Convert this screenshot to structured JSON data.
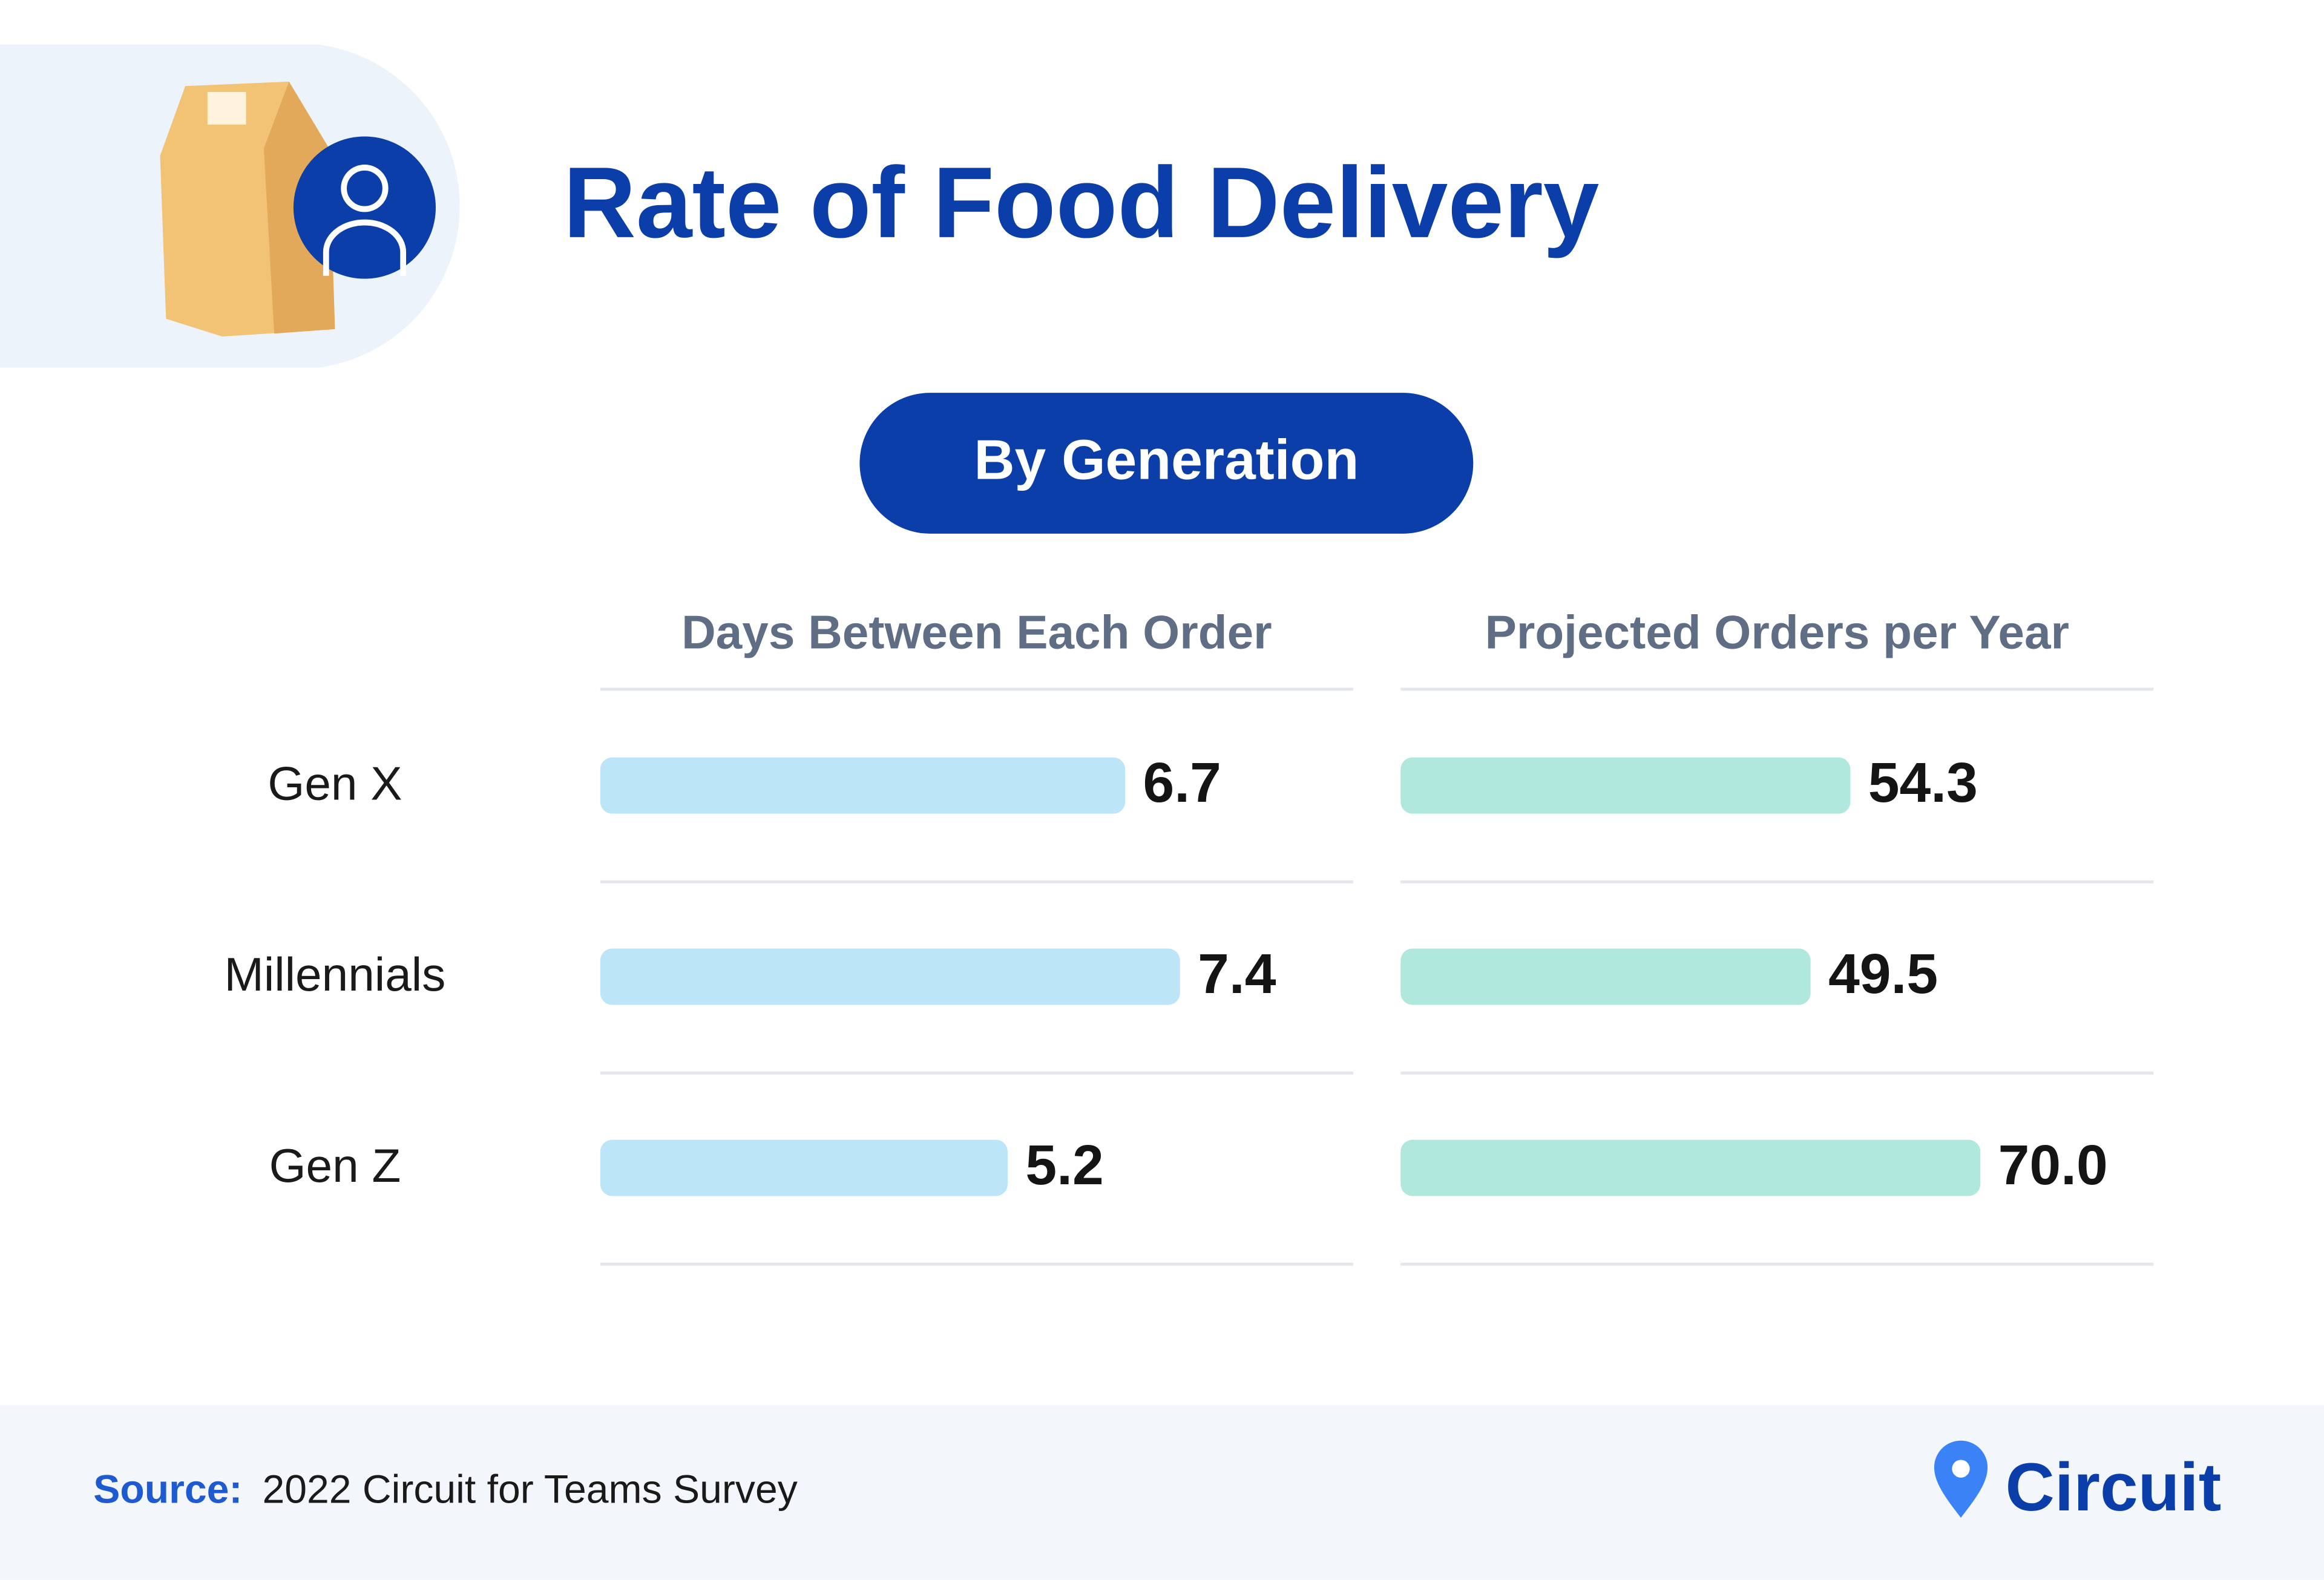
{
  "header": {
    "title": "Rate of Food Delivery",
    "subtitle": "By Generation"
  },
  "chart_data": [
    {
      "type": "bar",
      "orientation": "horizontal",
      "title": "Days Between Each Order",
      "categories": [
        "Gen X",
        "Millennials",
        "Gen Z"
      ],
      "values": [
        6.7,
        7.4,
        5.2
      ],
      "color": "#bde5f8"
    },
    {
      "type": "bar",
      "orientation": "horizontal",
      "title": "Projected Orders per Year",
      "values": [
        54.3,
        49.5,
        70
      ],
      "value_labels": [
        "54.3",
        "49.5",
        "70.0"
      ],
      "color": "#b1e8dd"
    }
  ],
  "footer": {
    "source_label": "Source:",
    "source": "2022 Circuit for Teams Survey",
    "logo": "Circuit"
  }
}
